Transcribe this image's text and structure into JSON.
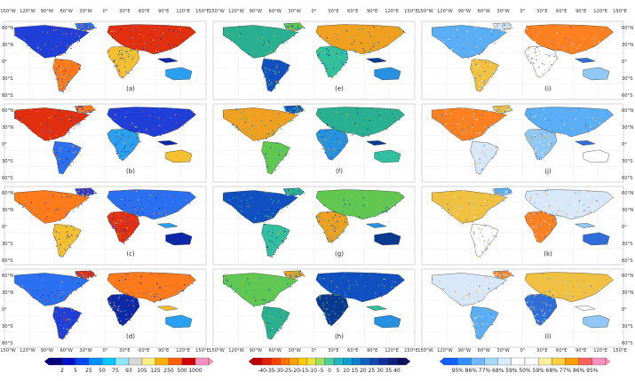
{
  "map": {
    "top_lon_labels": [
      "150°W",
      "120°W",
      "90°W",
      "60°W",
      "30°W",
      "0°",
      "30°E",
      "60°E",
      "90°E",
      "120°E",
      "150°E"
    ],
    "bottom_lon_labels": [
      "150°W",
      "120°W",
      "90°W",
      "60°W",
      "30°W",
      "0°",
      "30°E",
      "60°E",
      "90°E",
      "120°E",
      "150°E"
    ],
    "left_lat_labels": [
      "60°N",
      "30°N",
      "0°",
      "30°S",
      "60°S"
    ],
    "right_lat_labels": [
      "60°N",
      "30°N",
      "0°",
      "30°S",
      "60°S"
    ],
    "panel_labels": [
      [
        "(a)",
        "(e)",
        "(i)"
      ],
      [
        "(b)",
        "(f)",
        "(j)"
      ],
      [
        "(c)",
        "(g)",
        "(k)"
      ],
      [
        "(d)",
        "(h)",
        "(l)"
      ]
    ]
  },
  "colorbars": [
    {
      "labels": [
        "2",
        "5",
        "25",
        "50",
        "75",
        "93",
        "105",
        "125",
        "250",
        "500",
        "1000"
      ],
      "colors": [
        "#00007d",
        "#0010c8",
        "#0048f0",
        "#0090ff",
        "#00c8ff",
        "#90e8ff",
        "#d8d8d8",
        "#fff080",
        "#ffb000",
        "#ff6000",
        "#d00000",
        "#ff90c0"
      ]
    },
    {
      "labels": [
        "-40",
        "-35",
        "-30",
        "-25",
        "-20",
        "-15",
        "-10",
        "-5",
        "0",
        "5",
        "10",
        "15",
        "20",
        "25",
        "30",
        "35",
        "40"
      ],
      "colors": [
        "#c00000",
        "#e02000",
        "#ff4000",
        "#ff7000",
        "#ffa000",
        "#ffc800",
        "#f0e040",
        "#a0e060",
        "#50d0a0",
        "#20b8c0",
        "#10a0d0",
        "#1080d0",
        "#1060c0",
        "#1048b0",
        "#1030a0",
        "#102080",
        "#101060"
      ]
    },
    {
      "labels": [
        "95%",
        "86%",
        "77%",
        "68%",
        "59%",
        "50%",
        "59%",
        "68%",
        "77%",
        "86%",
        "95%"
      ],
      "colors": [
        "#1060ff",
        "#3090ff",
        "#70b8ff",
        "#a8d8ff",
        "#d8eeff",
        "#ffffff",
        "#ffffff",
        "#fff0a0",
        "#ffd040",
        "#ffa000",
        "#ff6060",
        "#ff90c0"
      ]
    }
  ]
}
